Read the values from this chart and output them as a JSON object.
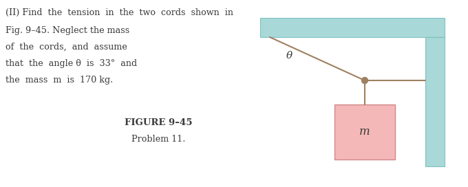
{
  "bg_color": "#ffffff",
  "ceiling_color": "#a8d8d8",
  "wall_color": "#a8d8d8",
  "cord_color": "#9e8060",
  "knot_color": "#9e8060",
  "mass_box_color": "#f5b8b8",
  "mass_box_edge_color": "#d08888",
  "text_color": "#3a3a3a",
  "title": "FIGURE 9–45",
  "subtitle": "Problem 11.",
  "line1": "(II) Find  the  tension  in  the  two  cords  shown  in",
  "line2": "Fig. 9–45. Neglect the mass",
  "line3": "of  the  cords,  and  assume",
  "line4": "that  the  angle θ  is  33°  and",
  "line5": "the  mass  m  is  170 kg.",
  "theta_label": "θ",
  "mass_label": "m"
}
